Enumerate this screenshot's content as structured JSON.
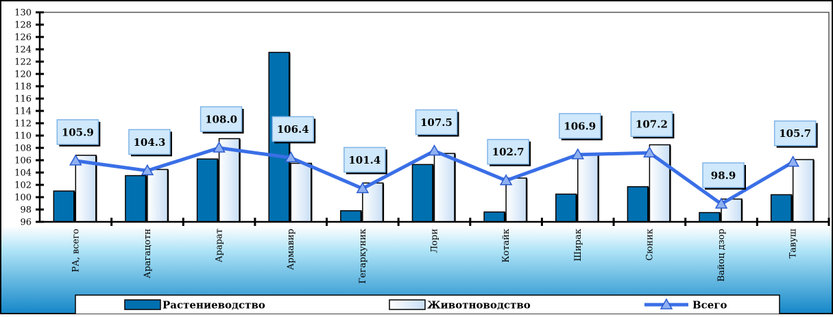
{
  "chart_data": {
    "type": "bar",
    "categories": [
      "РА, всего",
      "Арагацотн",
      "Арарат",
      "Армавир",
      "Гегаркуник",
      "Лори",
      "Котайк",
      "Ширак",
      "Сюник",
      "Вайоц дзор",
      "Тавуш"
    ],
    "series": [
      {
        "name": "Растениеводство",
        "type": "bar",
        "color": "#0070b0",
        "values": [
          101.0,
          103.5,
          106.2,
          123.5,
          97.8,
          105.3,
          97.6,
          100.5,
          101.7,
          97.5,
          100.4
        ]
      },
      {
        "name": "Животноводство",
        "type": "bar",
        "color": "#d6e9fb",
        "values": [
          106.8,
          104.5,
          109.5,
          105.5,
          102.3,
          107.1,
          103.1,
          107.0,
          108.5,
          99.7,
          106.1
        ]
      },
      {
        "name": "Всего",
        "type": "line",
        "color": "#3a6fe6",
        "values": [
          105.9,
          104.3,
          108.0,
          106.4,
          101.4,
          107.5,
          102.7,
          106.9,
          107.2,
          98.9,
          105.7
        ]
      }
    ],
    "data_labels": [
      "105.9",
      "104.3",
      "108.0",
      "106.4",
      "101.4",
      "107.5",
      "102.7",
      "106.9",
      "107.2",
      "98.9",
      "105.7"
    ],
    "ylim": [
      96,
      130
    ],
    "ytick_step": 2,
    "legend_position": "bottom",
    "background": "gradient-blue",
    "grid": false
  }
}
